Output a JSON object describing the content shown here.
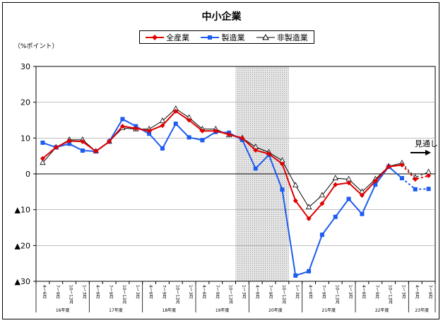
{
  "chart_data": {
    "type": "line",
    "title": "中小企業",
    "unit_label": "（%ポイント）",
    "ylim": [
      -30,
      30
    ],
    "yticks": [
      {
        "value": 30,
        "label": "30"
      },
      {
        "value": 20,
        "label": "20"
      },
      {
        "value": 10,
        "label": "10"
      },
      {
        "value": 0,
        "label": "0"
      },
      {
        "value": -10,
        "label": "▲10"
      },
      {
        "value": -20,
        "label": "▲20"
      },
      {
        "value": -30,
        "label": "▲30"
      }
    ],
    "categories": [
      "4〜6月",
      "7〜9月",
      "10〜12月",
      "1〜3月",
      "4〜6月",
      "7〜9月",
      "10〜12月",
      "1〜3月",
      "4〜6月",
      "7〜9月",
      "10〜12月",
      "1〜3月",
      "4〜6月",
      "7〜9月",
      "10〜12月",
      "1〜3月",
      "4〜6月",
      "7〜9月",
      "10〜12月",
      "1〜3月",
      "4〜6月",
      "7〜9月",
      "10〜12月",
      "1〜3月",
      "4〜6月",
      "7〜9月",
      "10〜12月",
      "1〜3月",
      "4〜6月",
      "7〜9月"
    ],
    "year_groups": [
      {
        "label": "16年度",
        "start": 0,
        "count": 4
      },
      {
        "label": "17年度",
        "start": 4,
        "count": 4
      },
      {
        "label": "18年度",
        "start": 8,
        "count": 4
      },
      {
        "label": "19年度",
        "start": 12,
        "count": 4
      },
      {
        "label": "20年度",
        "start": 16,
        "count": 4
      },
      {
        "label": "21年度",
        "start": 20,
        "count": 4
      },
      {
        "label": "22年度",
        "start": 24,
        "count": 4
      },
      {
        "label": "23年度",
        "start": 28,
        "count": 2
      }
    ],
    "shaded_region": {
      "from": 15,
      "to": 19
    },
    "forecast_label": "見通し",
    "forecast_start": 27,
    "series": [
      {
        "name": "全産業",
        "color": "#e00000",
        "marker": "diamond",
        "values": [
          4.3,
          7.4,
          9.2,
          9.0,
          6.3,
          9.0,
          13.3,
          12.7,
          12.0,
          13.5,
          17.5,
          15.0,
          12.0,
          12.0,
          11.0,
          10.0,
          6.6,
          5.6,
          2.8,
          -7.5,
          -12.5,
          -8.3,
          -3.0,
          -2.5,
          -6.0,
          -2.0,
          2.0,
          2.5,
          -1.5,
          -0.5
        ]
      },
      {
        "name": "製造業",
        "color": "#1c5cf0",
        "marker": "square",
        "values": [
          8.7,
          7.4,
          8.4,
          6.5,
          6.3,
          9.0,
          15.3,
          13.3,
          11.2,
          7.1,
          14.0,
          10.2,
          9.4,
          11.7,
          11.5,
          9.5,
          1.5,
          5.3,
          -4.4,
          -28.4,
          -27.2,
          -17.0,
          -12.0,
          -7.0,
          -11.2,
          -3.0,
          2.0,
          -1.2,
          -4.3,
          -4.2
        ]
      },
      {
        "name": "非製造業",
        "color": "#000000",
        "marker": "triangle",
        "values": [
          3.1,
          7.4,
          9.5,
          9.5,
          6.3,
          9.0,
          12.8,
          12.5,
          12.5,
          14.8,
          18.2,
          15.7,
          12.5,
          12.5,
          10.8,
          10.0,
          7.5,
          6.0,
          3.7,
          -3.2,
          -9.3,
          -6.0,
          -1.2,
          -1.5,
          -5.0,
          -1.5,
          2.1,
          3.0,
          -1.0,
          0.5
        ]
      }
    ]
  }
}
